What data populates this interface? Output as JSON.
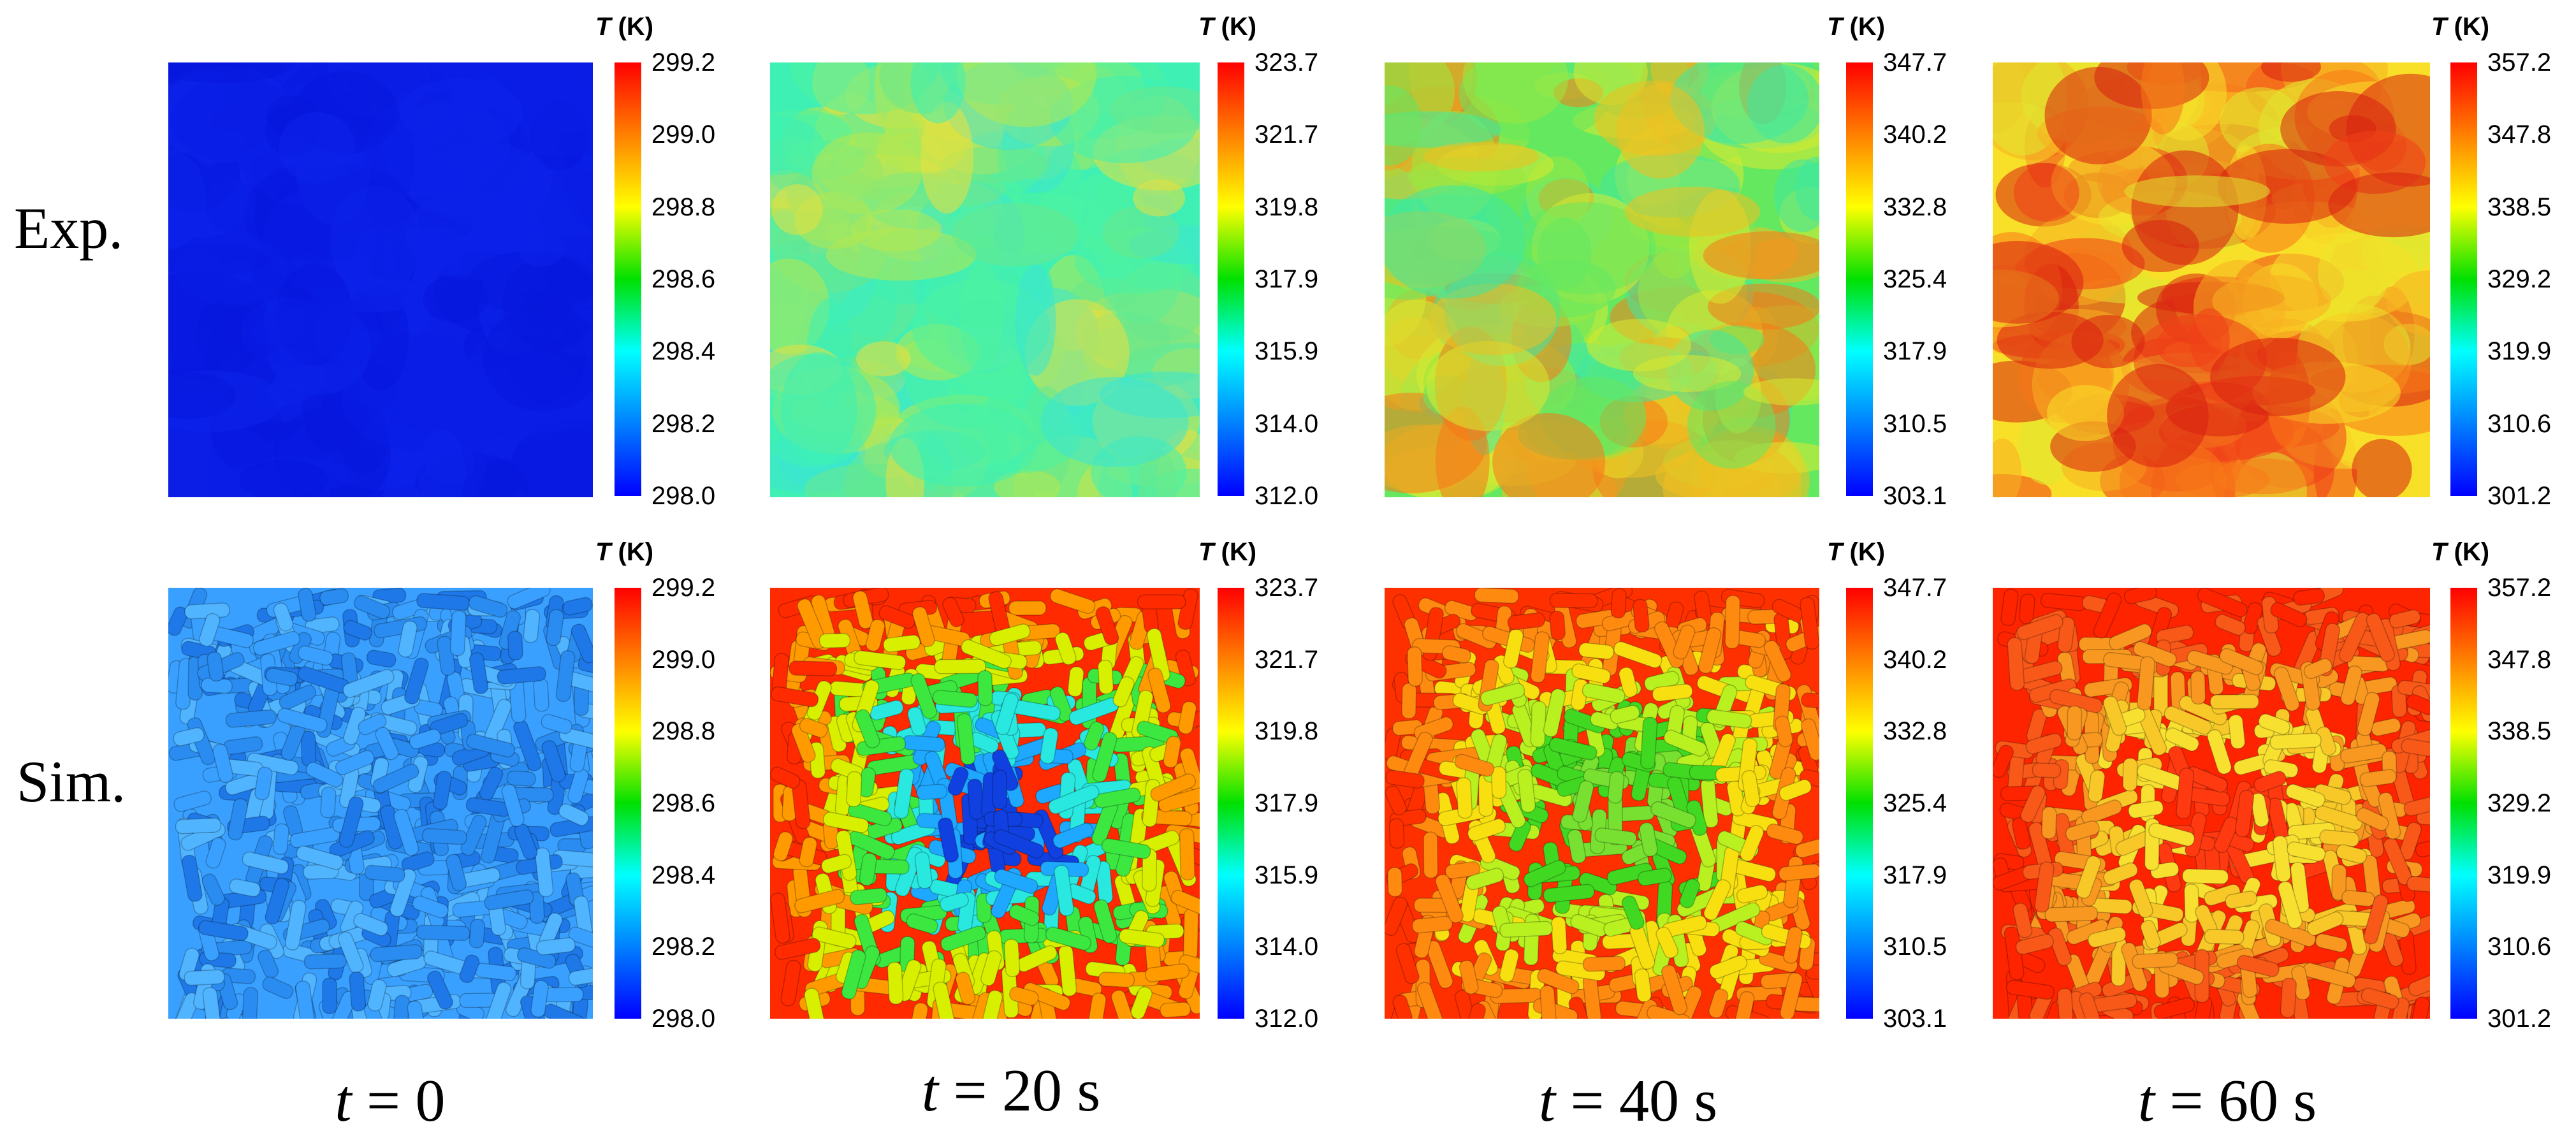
{
  "rows": [
    {
      "label": "Exp."
    },
    {
      "label": "Sim."
    }
  ],
  "columns": [
    {
      "time_var": "t",
      "time_text": " = 0"
    },
    {
      "time_var": "t",
      "time_text": " = 20 s"
    },
    {
      "time_var": "t",
      "time_text": " = 40 s"
    },
    {
      "time_var": "t",
      "time_text": " = 60 s"
    }
  ],
  "colorbar": {
    "title_var": "T",
    "title_unit": " (K)",
    "ticks": [
      [
        "299.2",
        "299.0",
        "298.8",
        "298.6",
        "298.4",
        "298.2",
        "298.0"
      ],
      [
        "323.7",
        "321.7",
        "319.8",
        "317.9",
        "315.9",
        "314.0",
        "312.0"
      ],
      [
        "347.7",
        "340.2",
        "332.8",
        "325.4",
        "317.9",
        "310.5",
        "303.1"
      ],
      [
        "357.2",
        "347.8",
        "338.5",
        "329.2",
        "319.9",
        "310.6",
        "301.2"
      ]
    ],
    "colors": [
      "#ff0000",
      "#ff8000",
      "#ffff00",
      "#00e000",
      "#00ffff",
      "#0080ff",
      "#0000ff"
    ]
  }
}
